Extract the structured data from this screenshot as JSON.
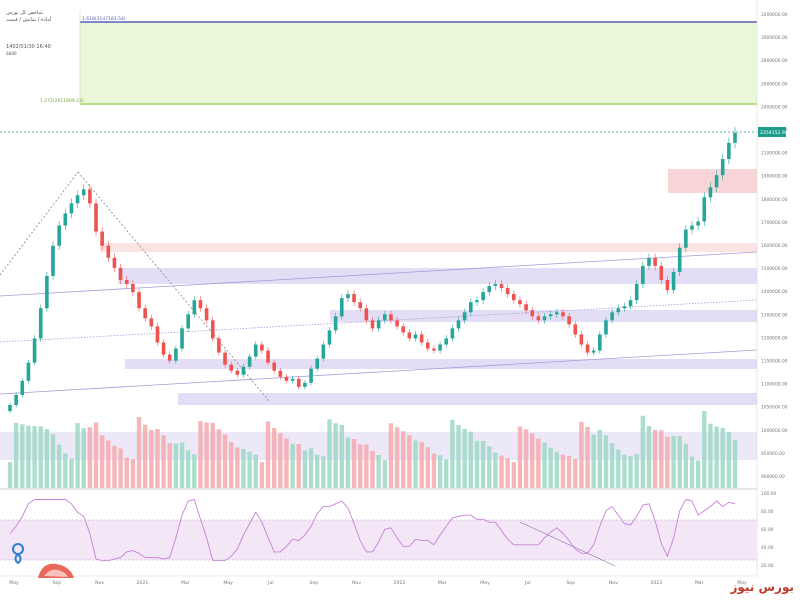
{
  "header": {
    "line1": "شاخص کل بورس",
    "line2": "آماده / نمایش / قیمت",
    "line3": "1402/01/30 16:40",
    "line4": "٥٥٥٥"
  },
  "watermark": {
    "text": "بورس نیوز",
    "logo_icon": "bourse-news-logo-icon",
    "brand_color": "#c0392b"
  },
  "colors": {
    "up": "#26a69a",
    "down": "#ef5350",
    "vol_up": "#9ed8c6",
    "vol_down": "#f4a9ae",
    "fib_fill": "#eaf7d9",
    "fib_line_top": "#5a5fb8",
    "fib_line_low": "#a6d46b",
    "zone_purple": "#d9d3f2",
    "zone_pink": "#f8cfd0",
    "rsi_line": "#c582d8",
    "rsi_band": "#f3e6f6",
    "last_price_bg": "#1f9d8c"
  },
  "chart_data": {
    "type": "candlestick",
    "price_axis": {
      "ticks": [
        "3200000.00",
        "3000000.00",
        "2800000.00",
        "2600000.00",
        "2400000.00",
        "2300000.00",
        "2100000.00",
        "1900000.00",
        "1800000.00",
        "1700000.00",
        "1600000.00",
        "1500000.00",
        "1400000.00",
        "1300000.00",
        "1200000.00",
        "1150000.00",
        "1100000.00",
        "1050000.00",
        "1000000.00",
        "950000.00",
        "900000.00"
      ]
    },
    "time_axis": [
      "May",
      "Sep",
      "Nov",
      "2021",
      "Mar",
      "May",
      "Jul",
      "Sep",
      "Nov",
      "2022",
      "Mar",
      "May",
      "Jul",
      "Sep",
      "Nov",
      "2023",
      "Mar",
      "May"
    ],
    "last_price_label": "2354152.98",
    "fib_levels": [
      {
        "label": "1.618(3147181.54)",
        "value": 3147181.54
      },
      {
        "label": "1.272(2611809.23)",
        "value": 2611809.23
      }
    ],
    "rsi_axis": [
      "100.00",
      "80.00",
      "60.00",
      "40.00",
      "20.00"
    ],
    "closes": [
      1000,
      1050,
      1120,
      1210,
      1330,
      1480,
      1640,
      1790,
      1890,
      1950,
      2000,
      2040,
      2070,
      2000,
      1860,
      1790,
      1730,
      1680,
      1620,
      1600,
      1560,
      1480,
      1430,
      1390,
      1310,
      1250,
      1220,
      1280,
      1380,
      1450,
      1520,
      1480,
      1420,
      1330,
      1260,
      1200,
      1170,
      1150,
      1190,
      1240,
      1300,
      1270,
      1210,
      1170,
      1140,
      1120,
      1130,
      1090,
      1110,
      1180,
      1230,
      1300,
      1370,
      1440,
      1530,
      1550,
      1510,
      1480,
      1420,
      1380,
      1420,
      1450,
      1420,
      1390,
      1360,
      1330,
      1350,
      1310,
      1280,
      1270,
      1300,
      1330,
      1380,
      1420,
      1460,
      1510,
      1520,
      1560,
      1590,
      1600,
      1580,
      1550,
      1520,
      1500,
      1470,
      1440,
      1420,
      1440,
      1450,
      1460,
      1440,
      1400,
      1350,
      1300,
      1260,
      1270,
      1350,
      1420,
      1460,
      1480,
      1490,
      1520,
      1600,
      1690,
      1730,
      1690,
      1620,
      1570,
      1660,
      1780,
      1870,
      1890,
      1910,
      2030,
      2080,
      2140,
      2220,
      2300,
      2350
    ]
  }
}
